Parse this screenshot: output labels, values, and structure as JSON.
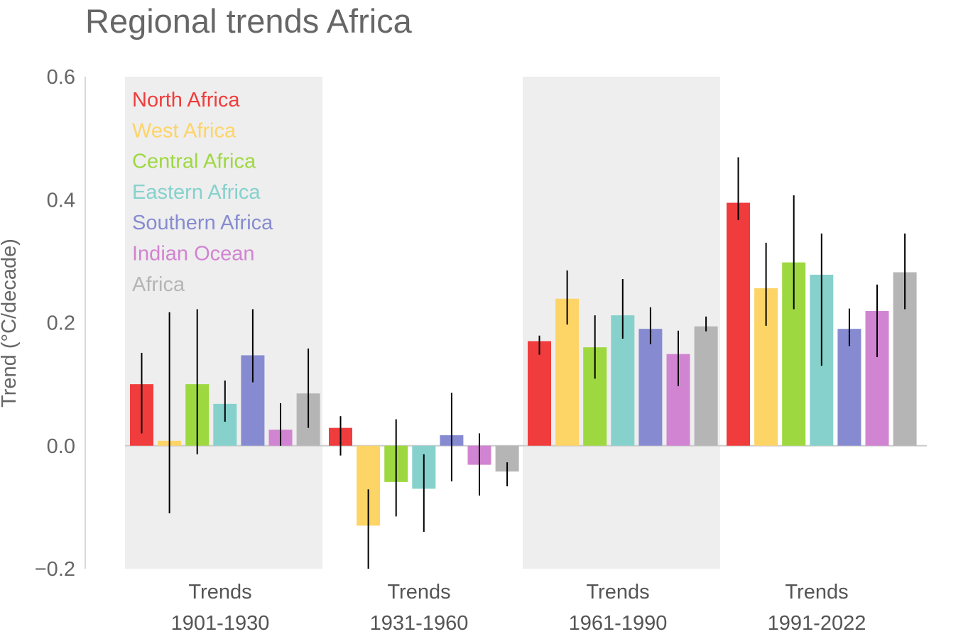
{
  "chart_data": {
    "type": "bar",
    "title": "Regional trends Africa",
    "ylabel": "Trend (°C/decade)",
    "xlabel": "",
    "ylim": [
      -0.2,
      0.6
    ],
    "yticks": [
      "−0.2",
      "0.0",
      "0.2",
      "0.4",
      "0.6"
    ],
    "grid": false,
    "legend_position": "top-left",
    "groups": [
      {
        "line1": "Trends",
        "line2": "1901-1930",
        "shaded": true
      },
      {
        "line1": "Trends",
        "line2": "1931-1960",
        "shaded": false
      },
      {
        "line1": "Trends",
        "line2": "1961-1990",
        "shaded": true
      },
      {
        "line1": "Trends",
        "line2": "1991-2022",
        "shaded": false
      }
    ],
    "series": [
      {
        "name": "North Africa",
        "color": "#f03c3c",
        "values": [
          0.1,
          0.029,
          0.17,
          0.395
        ],
        "err_low": [
          0.02,
          -0.016,
          0.148,
          0.367
        ],
        "err_high": [
          0.151,
          0.048,
          0.179,
          0.469
        ]
      },
      {
        "name": "West Africa",
        "color": "#fdd466",
        "values": [
          0.008,
          -0.13,
          0.239,
          0.256
        ],
        "err_low": [
          -0.11,
          -0.2,
          0.197,
          0.195
        ],
        "err_high": [
          0.217,
          -0.071,
          0.285,
          0.33
        ]
      },
      {
        "name": "Central Africa",
        "color": "#9ed840",
        "values": [
          0.1,
          -0.059,
          0.16,
          0.298
        ],
        "err_low": [
          -0.014,
          -0.115,
          0.109,
          0.222
        ],
        "err_high": [
          0.222,
          0.043,
          0.212,
          0.407
        ]
      },
      {
        "name": "Eastern Africa",
        "color": "#86d1cc",
        "values": [
          0.068,
          -0.07,
          0.212,
          0.278
        ],
        "err_low": [
          0.039,
          -0.14,
          0.174,
          0.13
        ],
        "err_high": [
          0.106,
          -0.014,
          0.271,
          0.345
        ]
      },
      {
        "name": "Southern Africa",
        "color": "#868bd1",
        "values": [
          0.147,
          0.017,
          0.19,
          0.19
        ],
        "err_low": [
          0.103,
          -0.058,
          0.165,
          0.162
        ],
        "err_high": [
          0.222,
          0.086,
          0.225,
          0.223
        ]
      },
      {
        "name": "Indian Ocean",
        "color": "#d184d1",
        "values": [
          0.026,
          -0.031,
          0.149,
          0.219
        ],
        "err_low": [
          0.0,
          -0.081,
          0.097,
          0.144
        ],
        "err_high": [
          0.069,
          0.02,
          0.187,
          0.262
        ]
      },
      {
        "name": "Africa",
        "color": "#b5b5b5",
        "values": [
          0.085,
          -0.042,
          0.194,
          0.282
        ],
        "err_low": [
          0.029,
          -0.066,
          0.186,
          0.222
        ],
        "err_high": [
          0.158,
          -0.027,
          0.21,
          0.345
        ]
      }
    ]
  }
}
